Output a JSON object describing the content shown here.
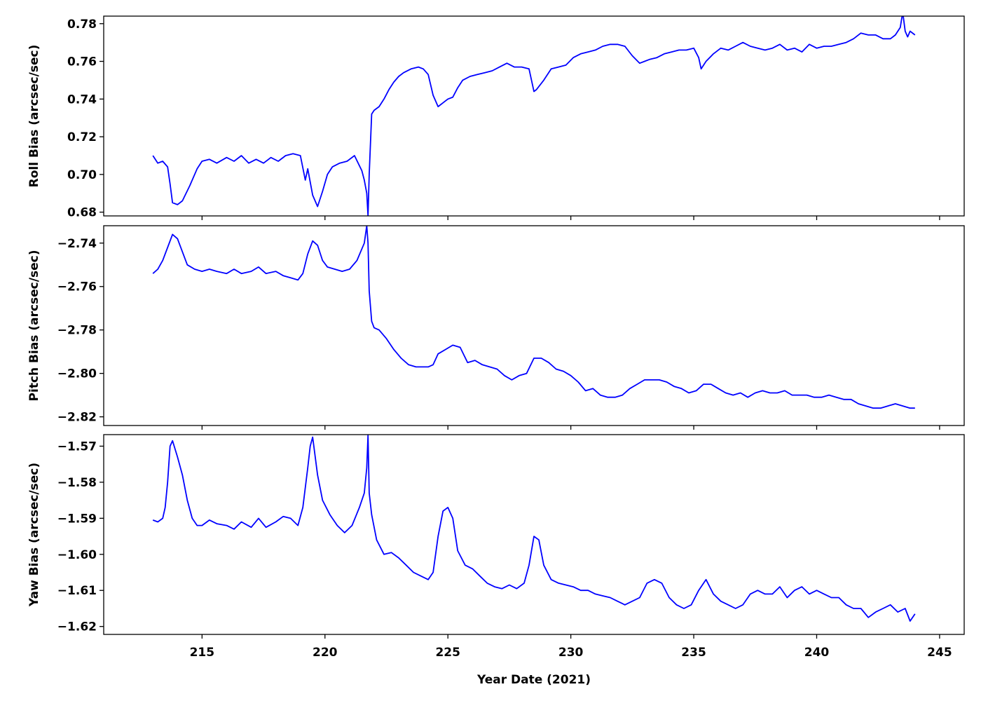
{
  "chart_data": {
    "type": "line",
    "shared_x": true,
    "grid": false,
    "xlabel": "Year Date (2021)",
    "xlim": [
      211,
      246
    ],
    "xticks": [
      215,
      220,
      225,
      230,
      235,
      240,
      245
    ],
    "line_color": "#0000ff",
    "panels": [
      {
        "ylabel": "Roll Bias (arcsec/sec)",
        "ylim": [
          0.678,
          0.784
        ],
        "yticks": [
          0.68,
          0.7,
          0.72,
          0.74,
          0.76,
          0.78
        ],
        "ytick_labels": [
          "0.68",
          "0.70",
          "0.72",
          "0.74",
          "0.76",
          "0.78"
        ],
        "series": [
          {
            "x": [
              213.0,
              213.2,
              213.4,
              213.6,
              213.7,
              213.8,
              214.0,
              214.2,
              214.5,
              214.8,
              215.0,
              215.3,
              215.6,
              216.0,
              216.3,
              216.6,
              216.9,
              217.2,
              217.5,
              217.8,
              218.1,
              218.4,
              218.7,
              219.0,
              219.2,
              219.3,
              219.5,
              219.7,
              219.9,
              220.1,
              220.3,
              220.6,
              220.9,
              221.2,
              221.5,
              221.6,
              221.7,
              221.75,
              221.8,
              221.9,
              222.0,
              222.2,
              222.4,
              222.6,
              222.8,
              223.0,
              223.2,
              223.5,
              223.8,
              224.0,
              224.2,
              224.4,
              224.6,
              224.8,
              225.0,
              225.2,
              225.4,
              225.6,
              225.9,
              226.2,
              226.5,
              226.8,
              227.1,
              227.4,
              227.7,
              228.0,
              228.3,
              228.5,
              228.6,
              228.9,
              229.2,
              229.5,
              229.8,
              230.1,
              230.4,
              230.7,
              231.0,
              231.3,
              231.6,
              231.9,
              232.2,
              232.5,
              232.8,
              233.0,
              233.2,
              233.5,
              233.8,
              234.1,
              234.4,
              234.7,
              235.0,
              235.2,
              235.3,
              235.5,
              235.8,
              236.1,
              236.4,
              236.7,
              237.0,
              237.3,
              237.6,
              237.9,
              238.2,
              238.5,
              238.8,
              239.1,
              239.4,
              239.7,
              240.0,
              240.3,
              240.6,
              240.9,
              241.2,
              241.5,
              241.8,
              242.1,
              242.4,
              242.7,
              243.0,
              243.2,
              243.4,
              243.5,
              243.6,
              243.7,
              243.8,
              244.0
            ],
            "y": [
              0.71,
              0.706,
              0.707,
              0.704,
              0.695,
              0.685,
              0.684,
              0.686,
              0.694,
              0.703,
              0.707,
              0.708,
              0.706,
              0.709,
              0.707,
              0.71,
              0.706,
              0.708,
              0.706,
              0.709,
              0.707,
              0.71,
              0.711,
              0.71,
              0.697,
              0.703,
              0.689,
              0.683,
              0.691,
              0.7,
              0.704,
              0.706,
              0.707,
              0.71,
              0.702,
              0.697,
              0.69,
              0.678,
              0.7,
              0.732,
              0.734,
              0.736,
              0.74,
              0.745,
              0.749,
              0.752,
              0.754,
              0.756,
              0.757,
              0.756,
              0.753,
              0.742,
              0.736,
              0.738,
              0.74,
              0.741,
              0.746,
              0.75,
              0.752,
              0.753,
              0.754,
              0.755,
              0.757,
              0.759,
              0.757,
              0.757,
              0.756,
              0.744,
              0.745,
              0.75,
              0.756,
              0.757,
              0.758,
              0.762,
              0.764,
              0.765,
              0.766,
              0.768,
              0.769,
              0.769,
              0.768,
              0.763,
              0.759,
              0.76,
              0.761,
              0.762,
              0.764,
              0.765,
              0.766,
              0.766,
              0.767,
              0.762,
              0.756,
              0.76,
              0.764,
              0.767,
              0.766,
              0.768,
              0.77,
              0.768,
              0.767,
              0.766,
              0.767,
              0.769,
              0.766,
              0.767,
              0.765,
              0.769,
              0.767,
              0.768,
              0.768,
              0.769,
              0.77,
              0.772,
              0.775,
              0.774,
              0.774,
              0.772,
              0.772,
              0.774,
              0.778,
              0.786,
              0.776,
              0.773,
              0.776,
              0.774
            ]
          }
        ]
      },
      {
        "ylabel": "Pitch Bias (arcsec/sec)",
        "ylim": [
          -2.824,
          -2.732
        ],
        "yticks": [
          -2.82,
          -2.8,
          -2.78,
          -2.76,
          -2.74
        ],
        "ytick_labels": [
          "−2.82",
          "−2.80",
          "−2.78",
          "−2.76",
          "−2.74"
        ],
        "series": [
          {
            "x": [
              213.0,
              213.2,
              213.4,
              213.6,
              213.8,
              214.0,
              214.2,
              214.4,
              214.7,
              215.0,
              215.3,
              215.6,
              216.0,
              216.3,
              216.6,
              217.0,
              217.3,
              217.6,
              218.0,
              218.3,
              218.6,
              218.9,
              219.1,
              219.3,
              219.5,
              219.7,
              219.9,
              220.1,
              220.4,
              220.7,
              221.0,
              221.3,
              221.6,
              221.7,
              221.75,
              221.8,
              221.9,
              222.0,
              222.2,
              222.5,
              222.8,
              223.1,
              223.4,
              223.7,
              224.0,
              224.2,
              224.4,
              224.6,
              224.9,
              225.2,
              225.5,
              225.8,
              226.1,
              226.4,
              226.7,
              227.0,
              227.3,
              227.6,
              227.9,
              228.2,
              228.5,
              228.8,
              229.1,
              229.4,
              229.7,
              230.0,
              230.3,
              230.6,
              230.9,
              231.2,
              231.5,
              231.8,
              232.1,
              232.4,
              232.7,
              233.0,
              233.3,
              233.6,
              233.9,
              234.2,
              234.5,
              234.8,
              235.1,
              235.4,
              235.7,
              236.0,
              236.3,
              236.6,
              236.9,
              237.2,
              237.5,
              237.8,
              238.1,
              238.4,
              238.7,
              239.0,
              239.3,
              239.6,
              239.9,
              240.2,
              240.5,
              240.8,
              241.1,
              241.4,
              241.7,
              242.0,
              242.3,
              242.6,
              242.9,
              243.2,
              243.5,
              243.8,
              244.0
            ],
            "y": [
              -2.754,
              -2.752,
              -2.748,
              -2.742,
              -2.736,
              -2.738,
              -2.744,
              -2.75,
              -2.752,
              -2.753,
              -2.752,
              -2.753,
              -2.754,
              -2.752,
              -2.754,
              -2.753,
              -2.751,
              -2.754,
              -2.753,
              -2.755,
              -2.756,
              -2.757,
              -2.754,
              -2.745,
              -2.739,
              -2.741,
              -2.748,
              -2.751,
              -2.752,
              -2.753,
              -2.752,
              -2.748,
              -2.74,
              -2.732,
              -2.74,
              -2.762,
              -2.776,
              -2.779,
              -2.78,
              -2.784,
              -2.789,
              -2.793,
              -2.796,
              -2.797,
              -2.797,
              -2.797,
              -2.796,
              -2.791,
              -2.789,
              -2.787,
              -2.788,
              -2.795,
              -2.794,
              -2.796,
              -2.797,
              -2.798,
              -2.801,
              -2.803,
              -2.801,
              -2.8,
              -2.793,
              -2.793,
              -2.795,
              -2.798,
              -2.799,
              -2.801,
              -2.804,
              -2.808,
              -2.807,
              -2.81,
              -2.811,
              -2.811,
              -2.81,
              -2.807,
              -2.805,
              -2.803,
              -2.803,
              -2.803,
              -2.804,
              -2.806,
              -2.807,
              -2.809,
              -2.808,
              -2.805,
              -2.805,
              -2.807,
              -2.809,
              -2.81,
              -2.809,
              -2.811,
              -2.809,
              -2.808,
              -2.809,
              -2.809,
              -2.808,
              -2.81,
              -2.81,
              -2.81,
              -2.811,
              -2.811,
              -2.81,
              -2.811,
              -2.812,
              -2.812,
              -2.814,
              -2.815,
              -2.816,
              -2.816,
              -2.815,
              -2.814,
              -2.815,
              -2.816,
              -2.816
            ]
          }
        ]
      },
      {
        "ylabel": "Yaw Bias (arcsec/sec)",
        "ylim": [
          -1.6222,
          -1.5668
        ],
        "yticks": [
          -1.62,
          -1.61,
          -1.6,
          -1.59,
          -1.58,
          -1.57
        ],
        "ytick_labels": [
          "−1.62",
          "−1.61",
          "−1.60",
          "−1.59",
          "−1.58",
          "−1.57"
        ],
        "series": [
          {
            "x": [
              213.0,
              213.2,
              213.4,
              213.5,
              213.6,
              213.7,
              213.8,
              214.0,
              214.2,
              214.4,
              214.6,
              214.8,
              215.0,
              215.3,
              215.6,
              216.0,
              216.3,
              216.6,
              217.0,
              217.3,
              217.6,
              218.0,
              218.3,
              218.6,
              218.9,
              219.1,
              219.3,
              219.4,
              219.5,
              219.7,
              219.9,
              220.2,
              220.5,
              220.8,
              221.1,
              221.4,
              221.6,
              221.7,
              221.75,
              221.8,
              221.9,
              222.1,
              222.4,
              222.7,
              223.0,
              223.3,
              223.6,
              223.9,
              224.2,
              224.4,
              224.6,
              224.8,
              225.0,
              225.2,
              225.4,
              225.7,
              226.0,
              226.3,
              226.6,
              226.9,
              227.2,
              227.5,
              227.8,
              228.1,
              228.3,
              228.5,
              228.7,
              228.9,
              229.2,
              229.5,
              229.8,
              230.1,
              230.4,
              230.7,
              231.0,
              231.3,
              231.6,
              231.9,
              232.2,
              232.5,
              232.8,
              233.1,
              233.4,
              233.7,
              234.0,
              234.3,
              234.6,
              234.9,
              235.2,
              235.5,
              235.8,
              236.1,
              236.4,
              236.7,
              237.0,
              237.3,
              237.6,
              237.9,
              238.2,
              238.5,
              238.8,
              239.1,
              239.4,
              239.7,
              240.0,
              240.3,
              240.6,
              240.9,
              241.2,
              241.5,
              241.8,
              242.1,
              242.4,
              242.7,
              243.0,
              243.3,
              243.6,
              243.8,
              244.0
            ],
            "y": [
              -1.5905,
              -1.591,
              -1.59,
              -1.587,
              -1.58,
              -1.57,
              -1.5685,
              -1.573,
              -1.578,
              -1.585,
              -1.59,
              -1.592,
              -1.592,
              -1.5905,
              -1.5915,
              -1.592,
              -1.593,
              -1.591,
              -1.5925,
              -1.59,
              -1.5925,
              -1.591,
              -1.5895,
              -1.59,
              -1.592,
              -1.587,
              -1.576,
              -1.57,
              -1.5675,
              -1.578,
              -1.585,
              -1.589,
              -1.592,
              -1.594,
              -1.592,
              -1.587,
              -1.583,
              -1.576,
              -1.567,
              -1.583,
              -1.589,
              -1.596,
              -1.6,
              -1.5995,
              -1.601,
              -1.603,
              -1.605,
              -1.606,
              -1.607,
              -1.605,
              -1.595,
              -1.588,
              -1.587,
              -1.59,
              -1.599,
              -1.603,
              -1.604,
              -1.606,
              -1.608,
              -1.609,
              -1.6095,
              -1.6085,
              -1.6095,
              -1.608,
              -1.603,
              -1.595,
              -1.596,
              -1.603,
              -1.607,
              -1.608,
              -1.6085,
              -1.609,
              -1.61,
              -1.61,
              -1.611,
              -1.6115,
              -1.612,
              -1.613,
              -1.614,
              -1.613,
              -1.612,
              -1.608,
              -1.607,
              -1.608,
              -1.612,
              -1.614,
              -1.615,
              -1.614,
              -1.61,
              -1.607,
              -1.611,
              -1.613,
              -1.614,
              -1.615,
              -1.614,
              -1.611,
              -1.61,
              -1.611,
              -1.611,
              -1.609,
              -1.612,
              -1.61,
              -1.609,
              -1.611,
              -1.61,
              -1.611,
              -1.612,
              -1.612,
              -1.614,
              -1.615,
              -1.615,
              -1.6175,
              -1.616,
              -1.615,
              -1.614,
              -1.616,
              -1.615,
              -1.6185,
              -1.6165
            ]
          }
        ]
      }
    ]
  }
}
